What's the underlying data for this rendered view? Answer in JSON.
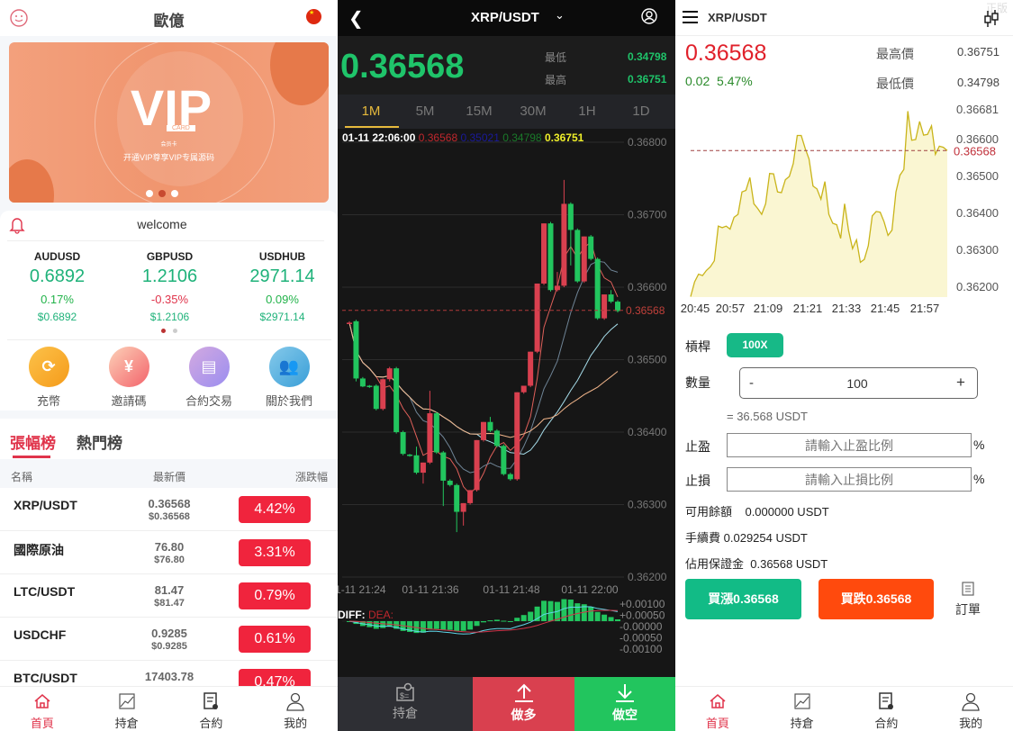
{
  "home": {
    "title": "歐億",
    "banner": {
      "big": "VIP",
      "small": "CARD",
      "tag": "会员卡",
      "subtitle": "开通VIP尊享VIP专属源码",
      "active_dot": 2,
      "dots": 3
    },
    "notice": "welcome",
    "tickers": [
      {
        "name": "AUDUSD",
        "price": "0.6892",
        "change": "0.17%",
        "usd": "$0.6892",
        "dir": "up"
      },
      {
        "name": "GBPUSD",
        "price": "1.2106",
        "change": "-0.35%",
        "usd": "$1.2106",
        "dir": "down"
      },
      {
        "name": "USDHUB",
        "price": "2971.14",
        "change": "0.09%",
        "usd": "$2971.14",
        "dir": "up"
      }
    ],
    "shortcuts": [
      {
        "label": "充幣",
        "icon": "deposit-icon"
      },
      {
        "label": "邀請碼",
        "icon": "invite-icon"
      },
      {
        "label": "合約交易",
        "icon": "contract-icon"
      },
      {
        "label": "關於我們",
        "icon": "about-icon"
      }
    ],
    "tabs": [
      "張幅榜",
      "熱門榜"
    ],
    "table_headers": [
      "名稱",
      "最新價",
      "漲跌幅"
    ],
    "rows": [
      {
        "name": "XRP/USDT",
        "price": "0.36568",
        "usd": "$0.36568",
        "change": "4.42%"
      },
      {
        "name": "國際原油",
        "price": "76.80",
        "usd": "$76.80",
        "change": "3.31%"
      },
      {
        "name": "LTC/USDT",
        "price": "81.47",
        "usd": "$81.47",
        "change": "0.79%"
      },
      {
        "name": "USDCHF",
        "price": "0.9285",
        "usd": "$0.9285",
        "change": "0.61%"
      },
      {
        "name": "BTC/USDT",
        "price": "17403.78",
        "usd": "",
        "change": "0.47%"
      }
    ],
    "nav": [
      "首頁",
      "持倉",
      "合約",
      "我的"
    ]
  },
  "kline": {
    "pair": "XRP/USDT",
    "price": "0.36568",
    "low_label": "最低",
    "low": "0.34798",
    "high_label": "最高",
    "high": "0.36751",
    "timeframes": [
      "1M",
      "5M",
      "15M",
      "30M",
      "1H",
      "1D"
    ],
    "active_tf": "1M",
    "info": {
      "time": "01-11 22:06:00",
      "v1": "0.36568",
      "v2": "0.35021",
      "v3": "0.34798",
      "v4": "0.36751"
    },
    "macd_label_diff": "DIFF:",
    "macd_label_dea": "DEA:",
    "macd_ticks": [
      "+0.00100",
      "+0.00050",
      "-0.00000",
      "-0.00050",
      "-0.00100"
    ],
    "buttons": {
      "position": "持倉",
      "long": "做多",
      "short": "做空"
    },
    "colors": {
      "up": "#d9404f",
      "down": "#22c55e",
      "accent": "#e5b93c"
    }
  },
  "chart_data": [
    {
      "type": "candlestick",
      "y_ticks": [
        "0.36800",
        "0.36700",
        "0.36600",
        "0.36500",
        "0.36400",
        "0.36300",
        "0.36200"
      ],
      "ylim": [
        0.362,
        0.368
      ],
      "x_ticks": [
        "01-11 21:24",
        "01-11 21:36",
        "01-11 21:48",
        "01-11 22:00"
      ],
      "current_price": 0.36568,
      "current_label": "0.36568",
      "grid": true,
      "candles": [
        [
          0.36551,
          0.36553,
          0.36549,
          0.36551
        ],
        [
          0.36553,
          0.36555,
          0.3647,
          0.36474
        ],
        [
          0.36474,
          0.36476,
          0.36462,
          0.36463
        ],
        [
          0.36464,
          0.36465,
          0.36461,
          0.36463
        ],
        [
          0.36464,
          0.36466,
          0.3643,
          0.36432
        ],
        [
          0.36432,
          0.36474,
          0.3643,
          0.36473
        ],
        [
          0.36473,
          0.3649,
          0.3647,
          0.36488
        ],
        [
          0.36488,
          0.3649,
          0.36398,
          0.364
        ],
        [
          0.364,
          0.36402,
          0.36368,
          0.3637
        ],
        [
          0.36369,
          0.3637,
          0.36366,
          0.36368
        ],
        [
          0.36368,
          0.3638,
          0.36342,
          0.36344
        ],
        [
          0.36344,
          0.36358,
          0.36329,
          0.36358
        ],
        [
          0.36358,
          0.36457,
          0.36356,
          0.36426
        ],
        [
          0.36426,
          0.36428,
          0.3637,
          0.36372
        ],
        [
          0.36372,
          0.36374,
          0.36298,
          0.36333
        ],
        [
          0.36333,
          0.36335,
          0.36325,
          0.36327
        ],
        [
          0.36327,
          0.36329,
          0.36262,
          0.3629
        ],
        [
          0.3629,
          0.36302,
          0.36271,
          0.36302
        ],
        [
          0.36302,
          0.3632,
          0.363,
          0.3632
        ],
        [
          0.3632,
          0.36389,
          0.36318,
          0.36389
        ],
        [
          0.36389,
          0.36414,
          0.36387,
          0.36414
        ],
        [
          0.36414,
          0.36421,
          0.364,
          0.36402
        ],
        [
          0.36402,
          0.36404,
          0.36379,
          0.36381
        ],
        [
          0.36381,
          0.36383,
          0.3634,
          0.36342
        ],
        [
          0.36342,
          0.36344,
          0.36333,
          0.36335
        ],
        [
          0.36335,
          0.36455,
          0.36333,
          0.36455
        ],
        [
          0.36455,
          0.36464,
          0.36453,
          0.36464
        ],
        [
          0.36464,
          0.36511,
          0.36462,
          0.36511
        ],
        [
          0.36511,
          0.36605,
          0.36509,
          0.36605
        ],
        [
          0.36605,
          0.36688,
          0.36603,
          0.36688
        ],
        [
          0.36688,
          0.3669,
          0.36594,
          0.36596
        ],
        [
          0.36596,
          0.36621,
          0.36594,
          0.36602
        ],
        [
          0.36602,
          0.36748,
          0.366,
          0.36715
        ],
        [
          0.36715,
          0.36717,
          0.3663,
          0.36679
        ],
        [
          0.36679,
          0.36681,
          0.36606,
          0.36608
        ],
        [
          0.36608,
          0.3667,
          0.36606,
          0.3667
        ],
        [
          0.3667,
          0.36672,
          0.36637,
          0.36639
        ],
        [
          0.36639,
          0.36641,
          0.36555,
          0.36557
        ],
        [
          0.36557,
          0.3659,
          0.36555,
          0.3659
        ],
        [
          0.3659,
          0.36596,
          0.36578,
          0.3658
        ],
        [
          0.3658,
          0.36582,
          0.36565,
          0.36567
        ]
      ]
    },
    {
      "type": "area",
      "y_ticks": [
        "0.36681",
        "0.36600",
        "0.36500",
        "0.36400",
        "0.36300",
        "0.36200"
      ],
      "ylim": [
        0.362,
        0.36681
      ],
      "x_ticks": [
        "20:45",
        "20:57",
        "21:09",
        "21:21",
        "21:33",
        "21:45",
        "21:57"
      ],
      "x_range": [
        "20:44",
        "22:03"
      ],
      "current_price": 0.36568,
      "current_label": "0.36568",
      "color": "#c9b41a",
      "values": [
        0.36172,
        0.36212,
        0.36233,
        0.36229,
        0.36243,
        0.36253,
        0.36269,
        0.36363,
        0.36359,
        0.36363,
        0.36355,
        0.36387,
        0.36395,
        0.36456,
        0.3646,
        0.36495,
        0.36424,
        0.36411,
        0.36395,
        0.36424,
        0.36506,
        0.36505,
        0.36456,
        0.36454,
        0.36489,
        0.36498,
        0.36533,
        0.36609,
        0.36609,
        0.36574,
        0.36545,
        0.36472,
        0.36464,
        0.36436,
        0.36484,
        0.36395,
        0.36371,
        0.36367,
        0.3633,
        0.36424,
        0.36351,
        0.36302,
        0.36326,
        0.36265,
        0.36273,
        0.3631,
        0.36391,
        0.36403,
        0.36401,
        0.36375,
        0.36338,
        0.36352,
        0.36456,
        0.36501,
        0.36517,
        0.36675,
        0.36596,
        0.36598,
        0.36647,
        0.3661,
        0.36612,
        0.36635,
        0.36558,
        0.3658,
        0.36577,
        0.36568
      ]
    }
  ],
  "trade": {
    "pair": "XRP/USDT",
    "watermark": "正版",
    "price": "0.36568",
    "change": "0.02",
    "change_pct": "5.47%",
    "high_label": "最高價",
    "high": "0.36751",
    "low_label": "最低價",
    "low": "0.34798",
    "leverage_label": "槓桿",
    "leverage": "100X",
    "qty_label": "數量",
    "qty": "100",
    "minus": "-",
    "plus": "+",
    "qty_equiv": "= 36.568 USDT",
    "tp_label": "止盈",
    "tp_placeholder": "請輸入止盈比例",
    "sl_label": "止損",
    "sl_placeholder": "請輸入止損比例",
    "pct": "%",
    "balance_label": "可用餘額",
    "balance": "0.000000 USDT",
    "fee_label": "手續費",
    "fee": "0.029254 USDT",
    "margin_label": "佔用保證金",
    "margin": "0.36568 USDT",
    "buy_up": "買漲0.36568",
    "buy_down": "買跌0.36568",
    "orders": "訂單",
    "nav": [
      "首頁",
      "持倉",
      "合約",
      "我的"
    ]
  }
}
